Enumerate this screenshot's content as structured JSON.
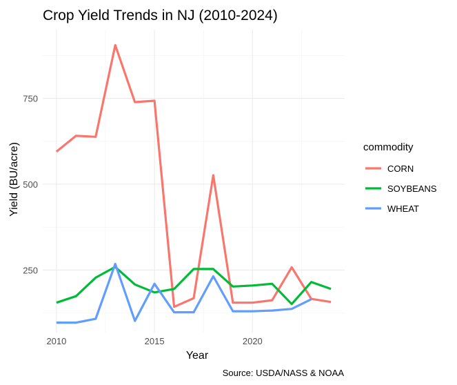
{
  "chart_data": {
    "type": "line",
    "title": "Crop Yield Trends in NJ (2010-2024)",
    "xlabel": "Year",
    "ylabel": "Yield (BU/acre)",
    "caption": "Source: USDA/NASS & NOAA",
    "legend_title": "commodity",
    "legend_position": "right",
    "grid": true,
    "xlim": [
      2009.3,
      2024.7
    ],
    "ylim": [
      68,
      950
    ],
    "x_ticks": [
      2010,
      2015,
      2020
    ],
    "y_ticks": [
      250,
      500,
      750
    ],
    "series": [
      {
        "name": "CORN",
        "color": "#F8766D",
        "x": [
          2010,
          2011,
          2012,
          2013,
          2014,
          2015,
          2016,
          2017,
          2018,
          2019,
          2020,
          2021,
          2022,
          2023,
          2024
        ],
        "values": [
          595,
          641,
          638,
          905,
          739,
          743,
          143,
          168,
          526,
          155,
          155,
          162,
          258,
          166,
          157
        ]
      },
      {
        "name": "SOYBEANS",
        "color": "#00BA38",
        "x": [
          2010,
          2011,
          2012,
          2013,
          2014,
          2015,
          2016,
          2017,
          2018,
          2019,
          2020,
          2021,
          2022,
          2023,
          2024
        ],
        "values": [
          155,
          174,
          228,
          259,
          208,
          185,
          195,
          253,
          253,
          202,
          205,
          210,
          151,
          215,
          195
        ]
      },
      {
        "name": "WHEAT",
        "color": "#619CFF",
        "x": [
          2010,
          2011,
          2012,
          2013,
          2014,
          2015,
          2016,
          2017,
          2018,
          2019,
          2020,
          2021,
          2022,
          2023
        ],
        "values": [
          97,
          97,
          108,
          268,
          102,
          210,
          127,
          127,
          232,
          130,
          130,
          132,
          137,
          165
        ]
      }
    ]
  }
}
